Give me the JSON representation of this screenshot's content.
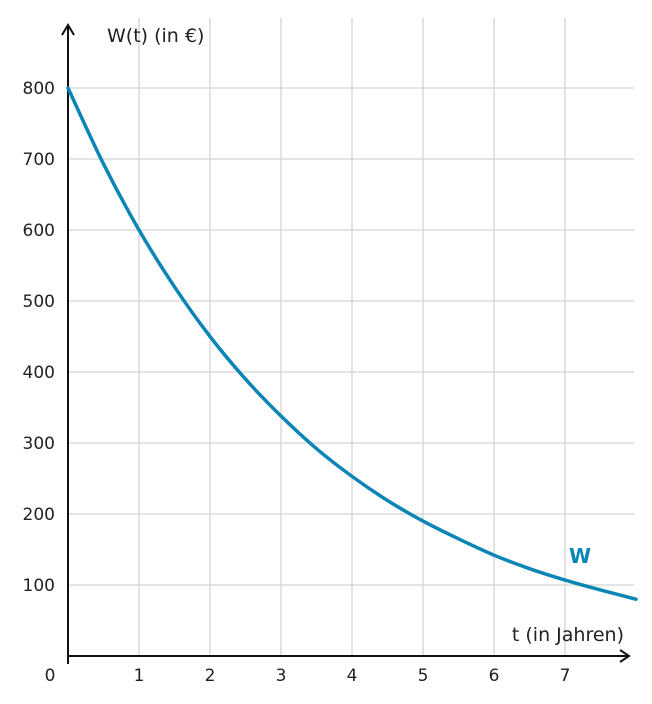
{
  "chart_data": {
    "type": "line",
    "title": "",
    "ylabel": "W(t) (in €)",
    "xlabel": "t (in Jahren)",
    "origin_label": "0",
    "xlim": [
      0,
      8
    ],
    "ylim": [
      0,
      800
    ],
    "x_ticks": [
      1,
      2,
      3,
      4,
      5,
      6,
      7
    ],
    "y_ticks": [
      100,
      200,
      300,
      400,
      500,
      600,
      700,
      800
    ],
    "grid": true,
    "series": [
      {
        "name": "W",
        "color": "#0a85b5",
        "x": [
          0,
          0.5,
          1,
          1.5,
          2,
          2.5,
          3,
          3.5,
          4,
          4.5,
          5,
          5.5,
          6,
          6.5,
          7,
          7.5,
          8
        ],
        "y": [
          800,
          693,
          600,
          520,
          450,
          390,
          338,
          292,
          253,
          219,
          190,
          165,
          142,
          123,
          107,
          93,
          80
        ]
      }
    ]
  }
}
